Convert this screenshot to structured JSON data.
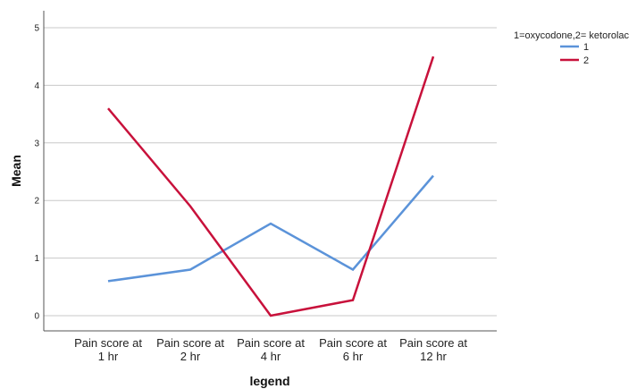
{
  "chart_data": {
    "type": "line",
    "categories": [
      [
        "Pain score at",
        "1 hr"
      ],
      [
        "Pain score at",
        "2 hr"
      ],
      [
        "Pain score at",
        "4 hr"
      ],
      [
        "Pain score at",
        "6 hr"
      ],
      [
        "Pain score at",
        "12 hr"
      ]
    ],
    "series": [
      {
        "name": "1",
        "color": "#5b93d9",
        "values": [
          0.6,
          0.8,
          1.6,
          0.8,
          2.43
        ]
      },
      {
        "name": "2",
        "color": "#c8113b",
        "values": [
          3.6,
          1.9,
          0.0,
          0.27,
          4.5
        ]
      }
    ],
    "xlabel": "legend",
    "ylabel": "Mean",
    "ylim": [
      0,
      5
    ],
    "yticks": [
      "0",
      "1",
      "2",
      "3",
      "4",
      "5"
    ],
    "grid": true,
    "legend": {
      "title": "1=oxycodone,2= ketorolac",
      "placement": "top-right"
    }
  }
}
